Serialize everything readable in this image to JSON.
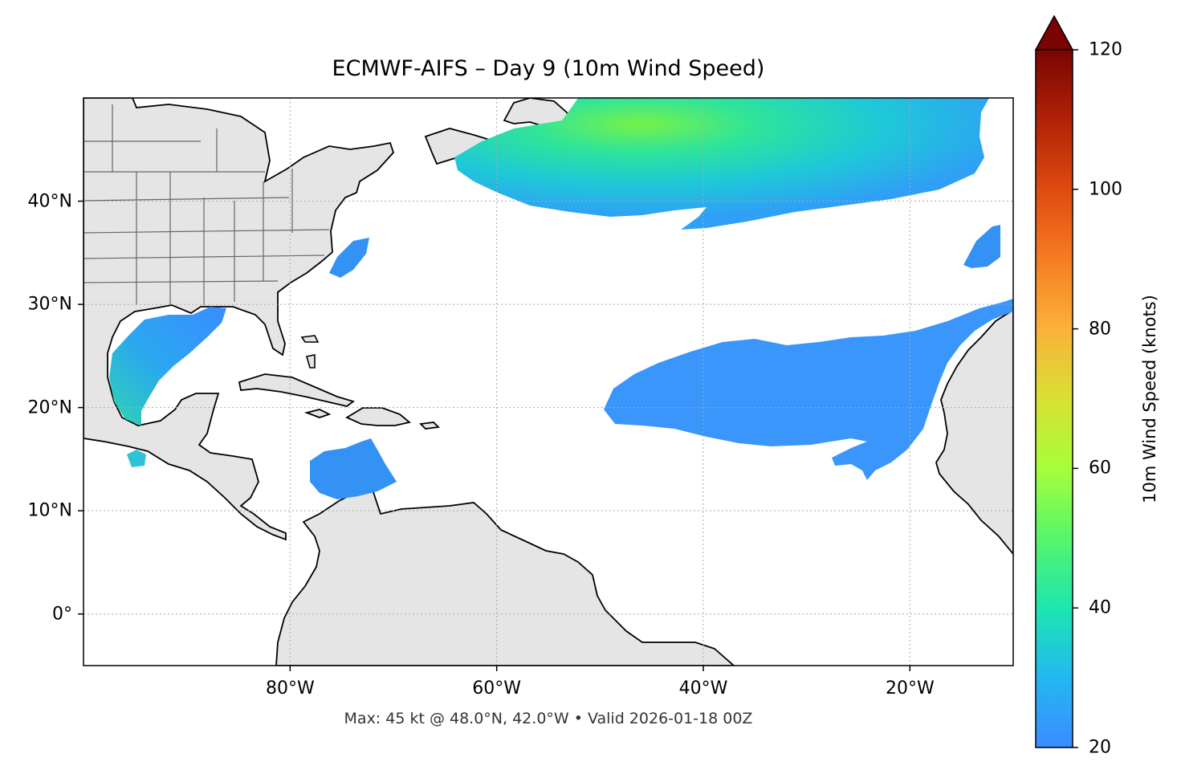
{
  "title": "ECMWF-AIFS – Day 9 (10m Wind Speed)",
  "footer": "Max: 45 kt @ 48.0°N, 42.0°W • Valid 2026-01-18 00Z",
  "map": {
    "extent": {
      "lon_min": -100,
      "lon_max": -10,
      "lat_min": -5,
      "lat_max": 50
    },
    "lon_ticks": [
      {
        "lon": -80,
        "label": "80°W"
      },
      {
        "lon": -60,
        "label": "60°W"
      },
      {
        "lon": -40,
        "label": "40°W"
      },
      {
        "lon": -20,
        "label": "20°W"
      }
    ],
    "lat_ticks": [
      {
        "lat": 40,
        "label": "40°N"
      },
      {
        "lat": 30,
        "label": "30°N"
      },
      {
        "lat": 20,
        "label": "20°N"
      },
      {
        "lat": 10,
        "label": "10°N"
      },
      {
        "lat": 0,
        "label": "0°"
      }
    ],
    "land_color": "#e5e5e5",
    "ocean_color": "#ffffff",
    "max_marker": {
      "lat": 48.0,
      "lon": -42.0,
      "value": 45
    }
  },
  "colorbar": {
    "label": "10m Wind Speed (knots)",
    "min": 20,
    "max": 120,
    "extend": "max",
    "ticks": [
      {
        "value": 20,
        "label": "20"
      },
      {
        "value": 40,
        "label": "40"
      },
      {
        "value": 60,
        "label": "60"
      },
      {
        "value": 80,
        "label": "80"
      },
      {
        "value": 100,
        "label": "100"
      },
      {
        "value": 120,
        "label": "120"
      }
    ],
    "colormap": "turbo",
    "colors": [
      "#3b8cff",
      "#22c4e0",
      "#27e39a",
      "#8aff3f",
      "#d8e035",
      "#fba937",
      "#f26a1c",
      "#cf3a0e",
      "#a11807",
      "#7a0403"
    ]
  }
}
